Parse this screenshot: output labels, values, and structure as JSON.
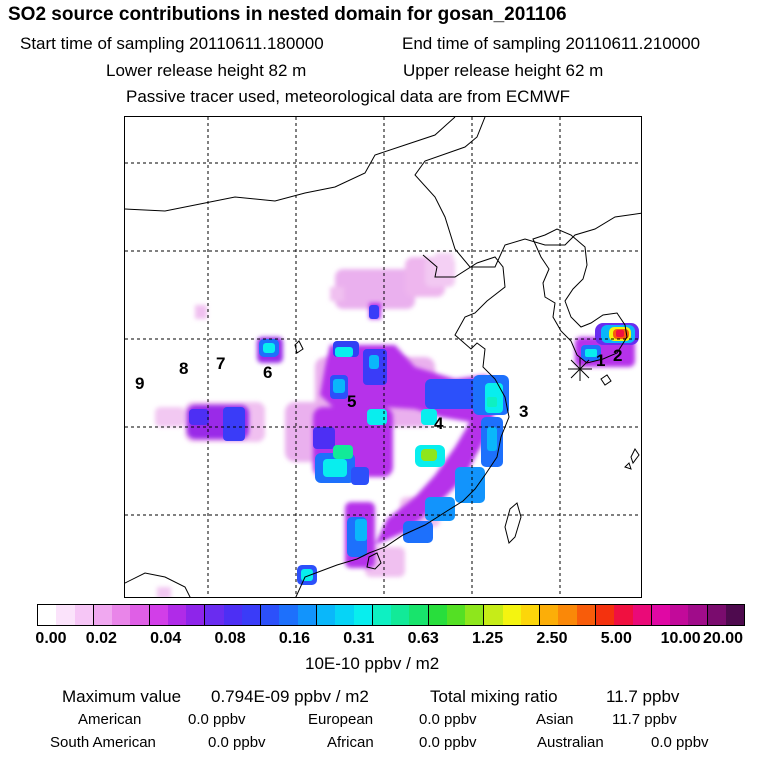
{
  "header": {
    "title": "SO2 source contributions in nested domain for gosan_201106",
    "start_time": "Start time of sampling 20110611.180000",
    "end_time": "End time of sampling 20110611.210000",
    "lower_release": "Lower release height   82 m",
    "upper_release": "Upper release height   62 m",
    "tracer_note": "Passive tracer used, meteorological data are from ECMWF"
  },
  "map": {
    "region_labels": [
      "1",
      "2",
      "3",
      "4",
      "5",
      "6",
      "7",
      "8",
      "9"
    ]
  },
  "colorbar": {
    "colors": [
      "#ffffff",
      "#fbe3fb",
      "#f6c6f6",
      "#f0a8f0",
      "#e985e9",
      "#df5fe6",
      "#d23ee8",
      "#b02be8",
      "#8e25ea",
      "#6a2cf0",
      "#4d2ff4",
      "#3a3cf8",
      "#2c50fa",
      "#1d70fc",
      "#1294fc",
      "#0ab7fa",
      "#06d4f6",
      "#08eeee",
      "#0ef0c2",
      "#12ea98",
      "#18e46c",
      "#28de3c",
      "#54e024",
      "#8ee61c",
      "#c6ec18",
      "#f4f410",
      "#fcd60a",
      "#fcae08",
      "#fa8808",
      "#f85c0a",
      "#f4320e",
      "#f01040",
      "#ea0a78",
      "#e008a4",
      "#c20a9a",
      "#a00c8a",
      "#7a0c6e",
      "#4e0a4e"
    ],
    "tick_labels": [
      "0.00",
      "0.02",
      "0.04",
      "0.08",
      "0.16",
      "0.31",
      "0.63",
      "1.25",
      "2.50",
      "5.00",
      "10.00",
      "20.00"
    ],
    "unit": "10E-10 ppbv / m2"
  },
  "summary": {
    "max_label": "Maximum value",
    "max_value": "0.794E-09 ppbv / m2",
    "total_label": "Total mixing ratio",
    "total_value": "11.7 ppbv",
    "american_label": "American",
    "american_value": "0.0 ppbv",
    "european_label": "European",
    "european_value": "0.0 ppbv",
    "asian_label": "Asian",
    "asian_value": "11.7 ppbv",
    "south_american_label": "South American",
    "south_american_value": "0.0 ppbv",
    "african_label": "African",
    "african_value": "0.0 ppbv",
    "australian_label": "Australian",
    "australian_value": "0.0 ppbv"
  }
}
